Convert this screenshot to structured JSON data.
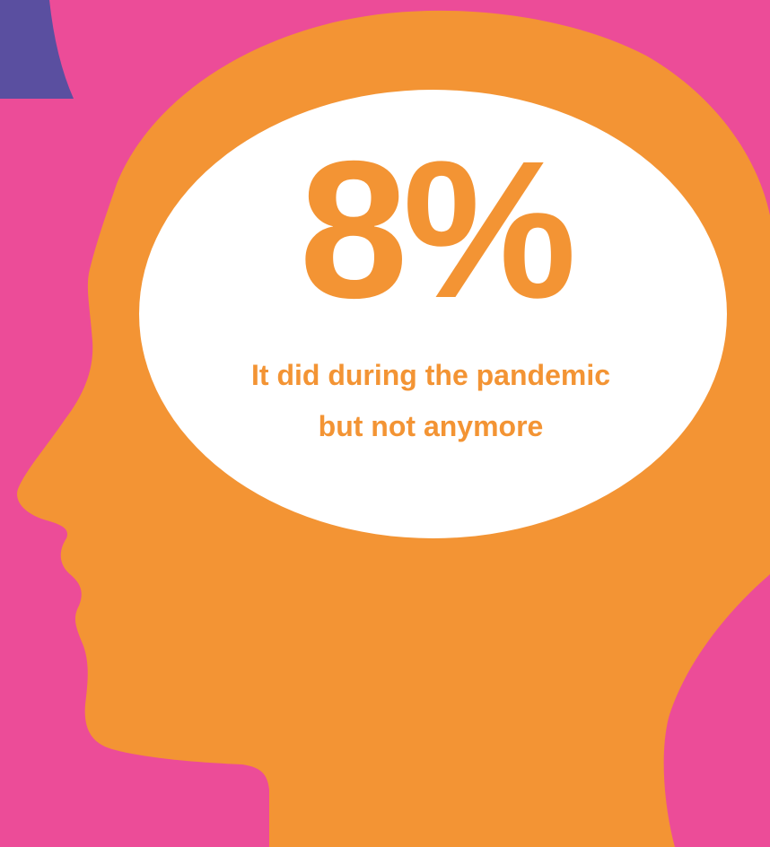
{
  "colors": {
    "background": "#ec4c98",
    "accent_shape": "#5a4fa0",
    "head": "#f39434",
    "bubble": "#ffffff",
    "text": "#f39434"
  },
  "stat": {
    "value": "8%",
    "caption": "It did during the pandemic but not anymore"
  }
}
